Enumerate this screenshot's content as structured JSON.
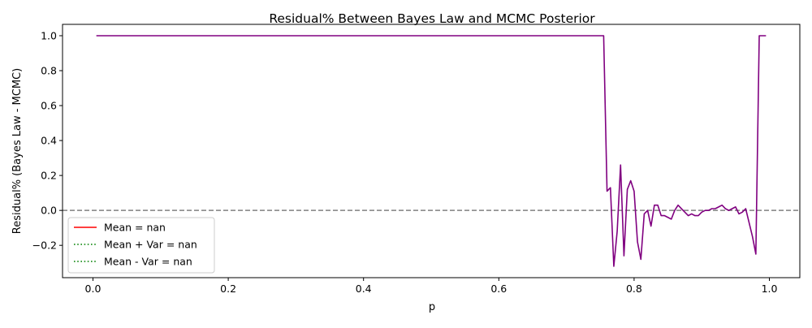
{
  "chart_data": {
    "type": "line",
    "title": "Residual% Between Bayes Law and MCMC Posterior",
    "xlabel": "p",
    "ylabel": "Residual% (Bayes Law - MCMC)",
    "xlim": [
      -0.045,
      1.045
    ],
    "ylim": [
      -0.385,
      1.065
    ],
    "grid": false,
    "legend_placement": "lower-left",
    "x_ticks": [
      0.0,
      0.2,
      0.4,
      0.6,
      0.8,
      1.0
    ],
    "x_tick_labels": [
      "0.0",
      "0.2",
      "0.4",
      "0.6",
      "0.8",
      "1.0"
    ],
    "y_ticks": [
      -0.2,
      0.0,
      0.2,
      0.4,
      0.6,
      0.8,
      1.0
    ],
    "y_tick_labels": [
      "−0.2",
      "0.0",
      "0.2",
      "0.4",
      "0.6",
      "0.8",
      "1.0"
    ],
    "reference_line": {
      "y": 0,
      "style": "dashed",
      "color": "#808080"
    },
    "legend": [
      {
        "label": "Mean = nan",
        "color": "#ff0000",
        "style": "solid"
      },
      {
        "label": "Mean + Var = nan",
        "color": "#008000",
        "style": "dotted"
      },
      {
        "label": "Mean - Var = nan",
        "color": "#008000",
        "style": "dotted"
      }
    ],
    "series": [
      {
        "color": "#800080",
        "x": [
          0.005,
          0.755,
          0.76,
          0.765,
          0.77,
          0.775,
          0.78,
          0.785,
          0.79,
          0.795,
          0.8,
          0.805,
          0.81,
          0.815,
          0.82,
          0.825,
          0.83,
          0.835,
          0.84,
          0.845,
          0.85,
          0.855,
          0.86,
          0.865,
          0.87,
          0.875,
          0.88,
          0.885,
          0.89,
          0.895,
          0.9,
          0.905,
          0.91,
          0.915,
          0.92,
          0.925,
          0.93,
          0.935,
          0.94,
          0.945,
          0.95,
          0.955,
          0.96,
          0.965,
          0.97,
          0.975,
          0.98,
          0.985,
          0.99,
          0.995
        ],
        "values": [
          1.0,
          1.0,
          0.11,
          0.13,
          -0.32,
          -0.12,
          0.26,
          -0.26,
          0.12,
          0.17,
          0.11,
          -0.18,
          -0.28,
          -0.02,
          0.0,
          -0.09,
          0.03,
          0.03,
          -0.03,
          -0.03,
          -0.04,
          -0.05,
          0.0,
          0.03,
          0.01,
          -0.01,
          -0.03,
          -0.02,
          -0.03,
          -0.03,
          -0.01,
          0.0,
          0.0,
          0.01,
          0.01,
          0.02,
          0.03,
          0.01,
          0.0,
          0.01,
          0.02,
          -0.02,
          -0.01,
          0.01,
          -0.07,
          -0.15,
          -0.25,
          1.0,
          1.0,
          1.0
        ]
      }
    ]
  }
}
